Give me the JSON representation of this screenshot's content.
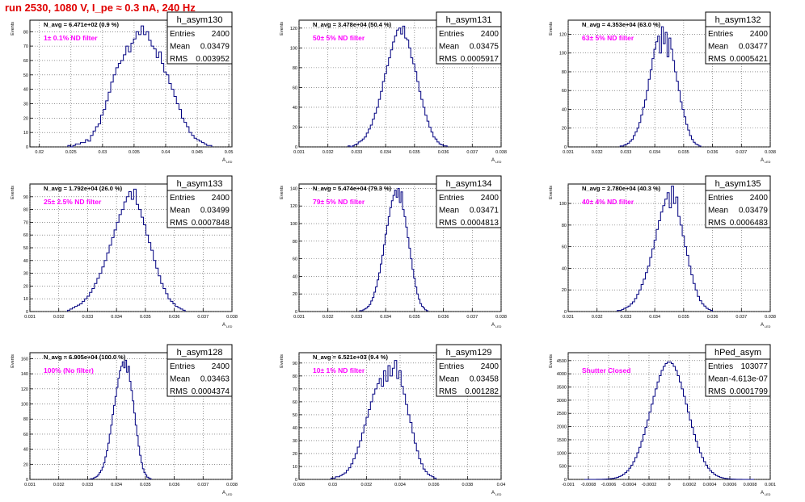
{
  "page_title": "run 2530,  1080 V, I_pe ≈ 0.3 nA, 240 Hz",
  "colors": {
    "title": "#e00000",
    "histogram": "#000080",
    "label": "#ff00ff",
    "grid": "#555555"
  },
  "axes": {
    "ylabel": "Events",
    "xlabel_main": "A",
    "xlabel_sub": "LED"
  },
  "stats_labels": [
    "Entries",
    "Mean",
    "RMS"
  ],
  "chart_data": [
    {
      "type": "histogram",
      "name": "h_asym130",
      "nlabel": "N_avg = 6.471e+02 (0.9 %)",
      "filter": "1± 0.1% ND filter",
      "stats": [
        "2400",
        "0.03479",
        "0.003952"
      ],
      "xlim": [
        0.0185,
        0.0505
      ],
      "ylim": [
        0,
        88
      ],
      "grid": true,
      "xticks": [
        "0.02",
        "0.025",
        "0.03",
        "0.035",
        "0.04",
        "0.045",
        "0.05"
      ],
      "xtick_values": [
        0.02,
        0.025,
        0.03,
        0.035,
        0.04,
        0.045,
        0.05
      ],
      "yticks": [
        "0",
        "10",
        "20",
        "30",
        "40",
        "50",
        "60",
        "70",
        "80"
      ],
      "ytick_values": [
        0,
        10,
        20,
        30,
        40,
        50,
        60,
        70,
        80
      ],
      "bin_start": 0.0245,
      "bin_width": 0.0004,
      "counts": [
        1,
        0,
        1,
        2,
        2,
        3,
        3,
        5,
        4,
        8,
        11,
        14,
        16,
        22,
        26,
        32,
        38,
        45,
        50,
        55,
        58,
        60,
        64,
        70,
        66,
        72,
        75,
        80,
        78,
        84,
        78,
        80,
        74,
        70,
        68,
        62,
        66,
        58,
        52,
        50,
        44,
        40,
        35,
        30,
        26,
        20,
        17,
        14,
        10,
        8,
        6,
        5,
        4,
        3,
        2,
        1,
        1
      ]
    },
    {
      "type": "histogram",
      "name": "h_asym131",
      "nlabel": "N_avg = 3.478e+04 (50.4 %)",
      "filter": "50± 5% ND filter",
      "stats": [
        "2400",
        "0.03475",
        "0.0005917"
      ],
      "xlim": [
        0.031,
        0.038
      ],
      "ylim": [
        0,
        128
      ],
      "grid": true,
      "xticks": [
        "0.031",
        "0.032",
        "0.033",
        "0.034",
        "0.035",
        "0.036",
        "0.037",
        "0.038"
      ],
      "xtick_values": [
        0.031,
        0.032,
        0.033,
        0.034,
        0.035,
        0.036,
        0.037,
        0.038
      ],
      "yticks": [
        "0",
        "20",
        "40",
        "60",
        "80",
        "100",
        "120"
      ],
      "ytick_values": [
        0,
        20,
        40,
        60,
        80,
        100,
        120
      ],
      "bin_start": 0.0327,
      "bin_width": 7e-05,
      "counts": [
        1,
        0,
        1,
        2,
        3,
        5,
        6,
        8,
        10,
        14,
        18,
        22,
        28,
        34,
        40,
        48,
        56,
        66,
        74,
        82,
        90,
        98,
        106,
        112,
        118,
        120,
        114,
        122,
        110,
        108,
        100,
        90,
        84,
        76,
        66,
        56,
        48,
        40,
        32,
        26,
        20,
        15,
        10,
        8,
        5,
        3,
        2,
        1,
        1
      ]
    },
    {
      "type": "histogram",
      "name": "h_asym132",
      "nlabel": "N_avg = 4.353e+04 (63.0 %)",
      "filter": "63± 5% ND filter",
      "stats": [
        "2400",
        "0.03477",
        "0.0005421"
      ],
      "xlim": [
        0.031,
        0.038
      ],
      "ylim": [
        0,
        135
      ],
      "grid": true,
      "xticks": [
        "0.031",
        "0.032",
        "0.033",
        "0.034",
        "0.035",
        "0.036",
        "0.037",
        "0.038"
      ],
      "xtick_values": [
        0.031,
        0.032,
        0.033,
        0.034,
        0.035,
        0.036,
        0.037,
        0.038
      ],
      "yticks": [
        "0",
        "20",
        "40",
        "60",
        "80",
        "100",
        "120"
      ],
      "ytick_values": [
        0,
        20,
        40,
        60,
        80,
        100,
        120
      ],
      "bin_start": 0.0328,
      "bin_width": 6.5e-05,
      "counts": [
        1,
        1,
        2,
        3,
        4,
        6,
        8,
        12,
        16,
        20,
        26,
        34,
        42,
        50,
        60,
        72,
        82,
        94,
        104,
        112,
        118,
        100,
        128,
        110,
        122,
        96,
        116,
        104,
        92,
        80,
        70,
        60,
        48,
        40,
        32,
        24,
        18,
        12,
        8,
        5,
        3,
        2,
        1
      ]
    },
    {
      "type": "histogram",
      "name": "h_asym133",
      "nlabel": "N_avg = 1.792e+04 (26.0 %)",
      "filter": "25± 2.5% ND filter",
      "stats": [
        "2400",
        "0.03499",
        "0.0007848"
      ],
      "xlim": [
        0.031,
        0.038
      ],
      "ylim": [
        0,
        100
      ],
      "grid": true,
      "xticks": [
        "0.031",
        "0.032",
        "0.033",
        "0.034",
        "0.035",
        "0.036",
        "0.037",
        "0.038"
      ],
      "xtick_values": [
        0.031,
        0.032,
        0.033,
        0.034,
        0.035,
        0.036,
        0.037,
        0.038
      ],
      "yticks": [
        "0",
        "10",
        "20",
        "30",
        "40",
        "50",
        "60",
        "70",
        "80",
        "90"
      ],
      "ytick_values": [
        0,
        10,
        20,
        30,
        40,
        50,
        60,
        70,
        80,
        90
      ],
      "bin_start": 0.0323,
      "bin_width": 8.5e-05,
      "counts": [
        1,
        2,
        3,
        4,
        5,
        6,
        8,
        10,
        12,
        15,
        18,
        22,
        26,
        30,
        35,
        40,
        46,
        52,
        58,
        64,
        70,
        76,
        80,
        86,
        90,
        94,
        88,
        96,
        84,
        80,
        74,
        68,
        60,
        54,
        48,
        40,
        34,
        28,
        22,
        18,
        14,
        10,
        8,
        6,
        4,
        3,
        2,
        1
      ]
    },
    {
      "type": "histogram",
      "name": "h_asym134",
      "nlabel": "N_avg = 5.474e+04 (79.3 %)",
      "filter": "79± 5% ND filter",
      "stats": [
        "2400",
        "0.03471",
        "0.0004813"
      ],
      "xlim": [
        0.031,
        0.038
      ],
      "ylim": [
        0,
        145
      ],
      "grid": true,
      "xticks": [
        "0.031",
        "0.032",
        "0.033",
        "0.034",
        "0.035",
        "0.036",
        "0.037",
        "0.038"
      ],
      "xtick_values": [
        0.031,
        0.032,
        0.033,
        0.034,
        0.035,
        0.036,
        0.037,
        0.038
      ],
      "yticks": [
        "0",
        "20",
        "40",
        "60",
        "80",
        "100",
        "120",
        "140"
      ],
      "ytick_values": [
        0,
        20,
        40,
        60,
        80,
        100,
        120,
        140
      ],
      "bin_start": 0.0331,
      "bin_width": 5.5e-05,
      "counts": [
        1,
        1,
        2,
        3,
        4,
        6,
        8,
        12,
        16,
        22,
        28,
        36,
        44,
        54,
        64,
        76,
        88,
        98,
        108,
        118,
        126,
        132,
        138,
        130,
        140,
        124,
        136,
        116,
        108,
        96,
        84,
        72,
        60,
        48,
        38,
        28,
        20,
        14,
        9,
        6,
        4,
        2,
        1
      ]
    },
    {
      "type": "histogram",
      "name": "h_asym135",
      "nlabel": "N_avg = 2.780e+04 (40.3 %)",
      "filter": "40± 4% ND filter",
      "stats": [
        "2400",
        "0.03479",
        "0.0006483"
      ],
      "xlim": [
        0.031,
        0.038
      ],
      "ylim": [
        0,
        118
      ],
      "grid": true,
      "xticks": [
        "0.031",
        "0.032",
        "0.033",
        "0.034",
        "0.035",
        "0.036",
        "0.037",
        "0.038"
      ],
      "xtick_values": [
        0.031,
        0.032,
        0.033,
        0.034,
        0.035,
        0.036,
        0.037,
        0.038
      ],
      "yticks": [
        "0",
        "20",
        "40",
        "60",
        "80",
        "100"
      ],
      "ytick_values": [
        0,
        20,
        40,
        60,
        80,
        100
      ],
      "bin_start": 0.0327,
      "bin_width": 7.5e-05,
      "counts": [
        1,
        1,
        2,
        3,
        4,
        5,
        7,
        9,
        12,
        16,
        20,
        25,
        30,
        36,
        42,
        50,
        58,
        66,
        76,
        84,
        92,
        98,
        104,
        110,
        96,
        116,
        100,
        106,
        88,
        80,
        70,
        60,
        52,
        42,
        34,
        26,
        20,
        14,
        10,
        7,
        5,
        3,
        2,
        1
      ]
    },
    {
      "type": "histogram",
      "name": "h_asym128",
      "nlabel": "N_avg = 6.905e+04 (100.0 %)",
      "filter": "100% (No filter)",
      "stats": [
        "2400",
        "0.03463",
        "0.0004374"
      ],
      "xlim": [
        0.031,
        0.038
      ],
      "ylim": [
        0,
        168
      ],
      "grid": true,
      "xticks": [
        "0.031",
        "0.032",
        "0.033",
        "0.034",
        "0.035",
        "0.036",
        "0.037",
        "0.038"
      ],
      "xtick_values": [
        0.031,
        0.032,
        0.033,
        0.034,
        0.035,
        0.036,
        0.037,
        0.038
      ],
      "yticks": [
        "0",
        "20",
        "40",
        "60",
        "80",
        "100",
        "120",
        "140",
        "160"
      ],
      "ytick_values": [
        0,
        20,
        40,
        60,
        80,
        100,
        120,
        140,
        160
      ],
      "bin_start": 0.0331,
      "bin_width": 5e-05,
      "counts": [
        1,
        1,
        2,
        3,
        4,
        6,
        9,
        12,
        16,
        22,
        30,
        38,
        48,
        60,
        72,
        86,
        98,
        110,
        122,
        134,
        144,
        150,
        156,
        148,
        158,
        142,
        150,
        130,
        118,
        104,
        88,
        72,
        58,
        44,
        32,
        22,
        14,
        9,
        6,
        3,
        2,
        1
      ]
    },
    {
      "type": "histogram",
      "name": "h_asym129",
      "nlabel": "N_avg = 6.521e+03 (9.4 %)",
      "filter": "10± 1% ND filter",
      "stats": [
        "2400",
        "0.03458",
        "0.001282"
      ],
      "xlim": [
        0.028,
        0.04
      ],
      "ylim": [
        0,
        98
      ],
      "grid": true,
      "xticks": [
        "0.028",
        "0.03",
        "0.032",
        "0.034",
        "0.036",
        "0.038",
        "0.04"
      ],
      "xtick_values": [
        0.028,
        0.03,
        0.032,
        0.034,
        0.036,
        0.038,
        0.04
      ],
      "yticks": [
        "0",
        "10",
        "20",
        "30",
        "40",
        "50",
        "60",
        "70",
        "80",
        "90"
      ],
      "ytick_values": [
        0,
        10,
        20,
        30,
        40,
        50,
        60,
        70,
        80,
        90
      ],
      "bin_start": 0.0299,
      "bin_width": 0.00013,
      "counts": [
        1,
        1,
        2,
        2,
        3,
        4,
        5,
        7,
        9,
        12,
        16,
        20,
        25,
        30,
        36,
        42,
        48,
        54,
        60,
        66,
        70,
        74,
        78,
        72,
        84,
        76,
        88,
        80,
        86,
        92,
        78,
        84,
        72,
        66,
        58,
        50,
        44,
        36,
        28,
        22,
        16,
        12,
        8,
        6,
        4,
        3,
        2,
        1
      ]
    },
    {
      "type": "histogram",
      "name": "hPed_asym",
      "nlabel": "",
      "filter": "Shutter Closed",
      "stats": [
        "103077",
        "-4.613e-07",
        "0.0001799"
      ],
      "xlim": [
        -0.001,
        0.001
      ],
      "ylim": [
        0,
        4800
      ],
      "grid": true,
      "xticks": [
        "-0.001",
        "-0.0008",
        "-0.0006",
        "-0.0004",
        "-0.0002",
        "0",
        "0.0002",
        "0.0004",
        "0.0006",
        "0.0008",
        "0.001"
      ],
      "xtick_values": [
        -0.001,
        -0.0008,
        -0.0006,
        -0.0004,
        -0.0002,
        0,
        0.0002,
        0.0004,
        0.0006,
        0.0008,
        0.001
      ],
      "yticks": [
        "0",
        "500",
        "1000",
        "1500",
        "2000",
        "2500",
        "3000",
        "3500",
        "4000",
        "4500"
      ],
      "ytick_values": [
        0,
        500,
        1000,
        1500,
        2000,
        2500,
        3000,
        3500,
        4000,
        4500
      ],
      "bin_start": -0.00084,
      "bin_width": 2e-05,
      "gaussian": {
        "mean": 0,
        "sigma": 0.00018,
        "peak": 4450
      }
    }
  ]
}
